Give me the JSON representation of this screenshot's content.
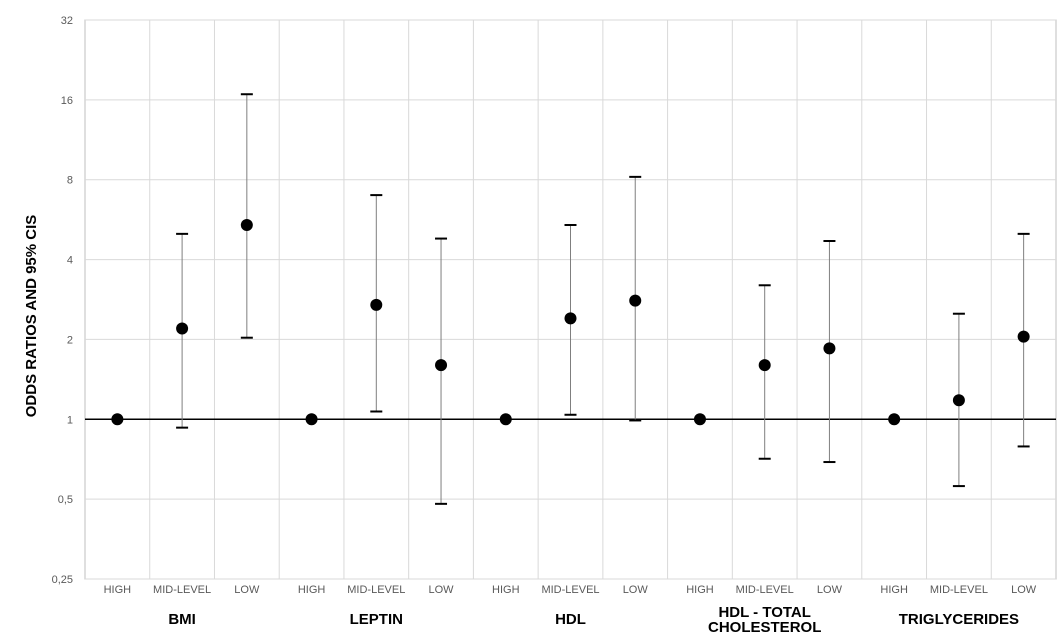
{
  "chart_data": {
    "type": "scatter",
    "ylabel": "ODDS RATIOS AND 95% CIS",
    "yscale": "log2",
    "ylim": [
      0.25,
      32
    ],
    "yticks": [
      32,
      16,
      8,
      4,
      2,
      1,
      0.5,
      0.25
    ],
    "ytick_labels": [
      "32",
      "16",
      "8",
      "4",
      "2",
      "1",
      "0,5",
      "0,25"
    ],
    "reference_line": 1,
    "grid": true,
    "groups": [
      {
        "label": "BMI",
        "points": [
          {
            "category": "HIGH",
            "or": 1,
            "lower": null,
            "upper": null
          },
          {
            "category": "MID-LEVEL",
            "or": 2.2,
            "lower": 0.93,
            "upper": 5.0
          },
          {
            "category": "LOW",
            "or": 5.4,
            "lower": 2.03,
            "upper": 16.8
          }
        ]
      },
      {
        "label": "LEPTIN",
        "points": [
          {
            "category": "HIGH",
            "or": 1,
            "lower": null,
            "upper": null
          },
          {
            "category": "MID-LEVEL",
            "or": 2.7,
            "lower": 1.07,
            "upper": 7.0
          },
          {
            "category": "LOW",
            "or": 1.6,
            "lower": 0.48,
            "upper": 4.8
          }
        ]
      },
      {
        "label": "HDL",
        "points": [
          {
            "category": "HIGH",
            "or": 1,
            "lower": null,
            "upper": null
          },
          {
            "category": "MID-LEVEL",
            "or": 2.4,
            "lower": 1.04,
            "upper": 5.4
          },
          {
            "category": "LOW",
            "or": 2.8,
            "lower": 0.99,
            "upper": 8.2
          }
        ]
      },
      {
        "label": "HDL - TOTAL CHOLESTEROL",
        "label_lines": [
          "HDL - TOTAL",
          "CHOLESTEROL"
        ],
        "points": [
          {
            "category": "HIGH",
            "or": 1,
            "lower": null,
            "upper": null
          },
          {
            "category": "MID-LEVEL",
            "or": 1.6,
            "lower": 0.71,
            "upper": 3.2
          },
          {
            "category": "LOW",
            "or": 1.85,
            "lower": 0.69,
            "upper": 4.7
          }
        ]
      },
      {
        "label": "TRIGLYCERIDES",
        "points": [
          {
            "category": "HIGH",
            "or": 1,
            "lower": null,
            "upper": null
          },
          {
            "category": "MID-LEVEL",
            "or": 1.18,
            "lower": 0.56,
            "upper": 2.5
          },
          {
            "category": "LOW",
            "or": 2.05,
            "lower": 0.79,
            "upper": 5.0
          }
        ]
      }
    ],
    "colors": {
      "marker": "#000000",
      "errorbar": "#7f7f7f",
      "errorcap": "#000000",
      "gridline": "#d9d9d9",
      "reference_line": "#000000",
      "border": "#bfbfbf"
    }
  }
}
